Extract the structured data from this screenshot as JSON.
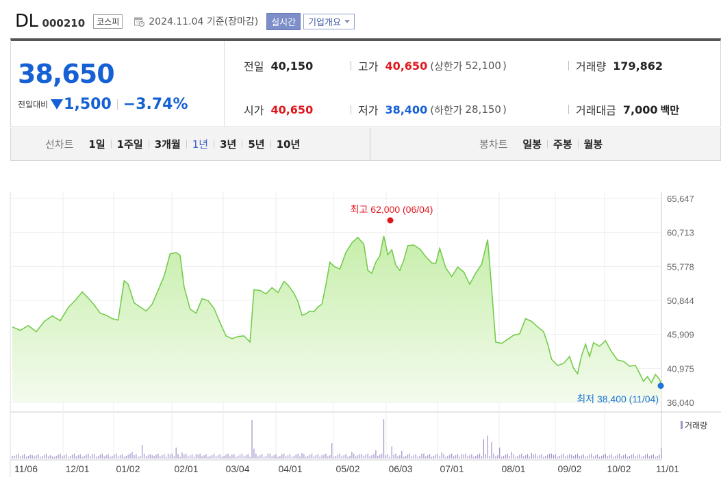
{
  "header": {
    "name": "DL",
    "code": "000210",
    "market": "코스피",
    "date_text": "2024.11.04 기준(장마감)",
    "realtime_label": "실시간",
    "corp_info_label": "기업개요"
  },
  "quote": {
    "price": "38,650",
    "change_label": "전일대비",
    "change": "1,500",
    "change_pct": "−3.74%",
    "prev_close_label": "전일",
    "prev_close": "40,150",
    "high_label": "고가",
    "high": "40,650",
    "upper_limit_label": "(상한가",
    "upper_limit": "52,100",
    "upper_limit_close": ")",
    "volume_label": "거래량",
    "volume": "179,862",
    "open_label": "시가",
    "open": "40,650",
    "low_label": "저가",
    "low": "38,400",
    "lower_limit_label": "(하한가",
    "lower_limit": "28,150",
    "lower_limit_close": ")",
    "amount_label": "거래대금",
    "amount": "7,000",
    "amount_unit": "백만",
    "colors": {
      "up": "#e0161d",
      "down": "#1560d4"
    }
  },
  "tabs": {
    "line_label": "선차트",
    "line_items": [
      "1일",
      "1주일",
      "3개월",
      "1년",
      "3년",
      "5년",
      "10년"
    ],
    "active": "1년",
    "candle_label": "봉차트",
    "candle_items": [
      "일봉",
      "주봉",
      "월봉"
    ]
  },
  "chart_data": {
    "type": "area",
    "ylim": [
      36040,
      65647
    ],
    "yticks": [
      "65,647",
      "60,713",
      "55,778",
      "50,844",
      "45,909",
      "40,975",
      "36,040"
    ],
    "xticks": [
      "11/06",
      "12/01",
      "01/02",
      "02/01",
      "03/04",
      "04/01",
      "05/02",
      "06/03",
      "07/01",
      "08/01",
      "09/02",
      "10/02",
      "11/01"
    ],
    "max_label": "최고 62,000 (06/04)",
    "min_label": "최저 38,400 (11/04)",
    "volume_label": "거래량",
    "colors": {
      "line": "#74cc4c",
      "fill_top": "#c6eeaa",
      "fill_bottom": "#f4fbee",
      "volume": "#a08fc9",
      "max": "#e0161d",
      "min": "#1d73d6"
    },
    "price_series": [
      [
        0,
        47000
      ],
      [
        4,
        46500
      ],
      [
        8,
        47200
      ],
      [
        12,
        46300
      ],
      [
        16,
        47800
      ],
      [
        20,
        48600
      ],
      [
        24,
        47900
      ],
      [
        28,
        49800
      ],
      [
        32,
        51000
      ],
      [
        35,
        52100
      ],
      [
        38,
        51200
      ],
      [
        41,
        50200
      ],
      [
        44,
        49000
      ],
      [
        47,
        48700
      ],
      [
        50,
        48200
      ],
      [
        53,
        48000
      ],
      [
        56,
        53700
      ],
      [
        58,
        53200
      ],
      [
        61,
        50500
      ],
      [
        64,
        49900
      ],
      [
        67,
        49300
      ],
      [
        70,
        50300
      ],
      [
        73,
        52300
      ],
      [
        76,
        54400
      ],
      [
        79,
        57600
      ],
      [
        82,
        57800
      ],
      [
        84,
        57400
      ],
      [
        86,
        52800
      ],
      [
        89,
        49600
      ],
      [
        92,
        49000
      ],
      [
        95,
        51100
      ],
      [
        98,
        50800
      ],
      [
        101,
        49700
      ],
      [
        104,
        47600
      ],
      [
        107,
        45700
      ],
      [
        110,
        45300
      ],
      [
        113,
        45600
      ],
      [
        116,
        45700
      ],
      [
        119,
        44800
      ],
      [
        121,
        52400
      ],
      [
        124,
        52300
      ],
      [
        127,
        51800
      ],
      [
        130,
        52700
      ],
      [
        133,
        52000
      ],
      [
        136,
        53600
      ],
      [
        138,
        53100
      ],
      [
        141,
        51900
      ],
      [
        143,
        50700
      ],
      [
        145,
        48700
      ],
      [
        147,
        48900
      ],
      [
        149,
        49300
      ],
      [
        151,
        49200
      ],
      [
        153,
        49900
      ],
      [
        155,
        50300
      ],
      [
        157,
        53100
      ],
      [
        159,
        56400
      ],
      [
        161,
        55800
      ],
      [
        164,
        55400
      ],
      [
        167,
        57800
      ],
      [
        170,
        59200
      ],
      [
        173,
        60000
      ],
      [
        176,
        59000
      ],
      [
        178,
        55200
      ],
      [
        180,
        54800
      ],
      [
        182,
        56400
      ],
      [
        184,
        57300
      ],
      [
        186,
        60200
      ],
      [
        188,
        57500
      ],
      [
        190,
        58200
      ],
      [
        192,
        56000
      ],
      [
        194,
        55200
      ],
      [
        196,
        56700
      ],
      [
        198,
        58800
      ],
      [
        201,
        58900
      ],
      [
        204,
        58300
      ],
      [
        207,
        57200
      ],
      [
        210,
        56300
      ],
      [
        212,
        56200
      ],
      [
        214,
        58400
      ],
      [
        217,
        55600
      ],
      [
        220,
        54300
      ],
      [
        223,
        55700
      ],
      [
        226,
        55000
      ],
      [
        229,
        53200
      ],
      [
        232,
        54800
      ],
      [
        235,
        56100
      ],
      [
        238,
        59700
      ],
      [
        240,
        52500
      ],
      [
        242,
        44800
      ],
      [
        245,
        44600
      ],
      [
        248,
        45200
      ],
      [
        251,
        45800
      ],
      [
        254,
        46000
      ],
      [
        257,
        48200
      ],
      [
        260,
        47800
      ],
      [
        263,
        47000
      ],
      [
        266,
        46300
      ],
      [
        268,
        44600
      ],
      [
        270,
        42300
      ],
      [
        273,
        41400
      ],
      [
        276,
        41700
      ],
      [
        279,
        42700
      ],
      [
        281,
        41000
      ],
      [
        283,
        40200
      ],
      [
        285,
        42800
      ],
      [
        287,
        44500
      ],
      [
        289,
        42700
      ],
      [
        291,
        44700
      ],
      [
        294,
        44200
      ],
      [
        297,
        45000
      ],
      [
        300,
        43400
      ],
      [
        303,
        42200
      ],
      [
        306,
        42000
      ],
      [
        309,
        41300
      ],
      [
        312,
        41400
      ],
      [
        314,
        40300
      ],
      [
        316,
        39100
      ],
      [
        318,
        39800
      ],
      [
        320,
        38900
      ],
      [
        322,
        40100
      ],
      [
        324,
        39400
      ],
      [
        325,
        38650
      ]
    ],
    "volume_series": [
      [
        0,
        5
      ],
      [
        10,
        6
      ],
      [
        20,
        4
      ],
      [
        30,
        7
      ],
      [
        40,
        8
      ],
      [
        50,
        5
      ],
      [
        60,
        12
      ],
      [
        65,
        25
      ],
      [
        70,
        6
      ],
      [
        78,
        9
      ],
      [
        82,
        20
      ],
      [
        85,
        11
      ],
      [
        92,
        8
      ],
      [
        100,
        6
      ],
      [
        110,
        7
      ],
      [
        120,
        70
      ],
      [
        121,
        18
      ],
      [
        128,
        9
      ],
      [
        135,
        8
      ],
      [
        145,
        10
      ],
      [
        155,
        6
      ],
      [
        160,
        28
      ],
      [
        170,
        12
      ],
      [
        175,
        8
      ],
      [
        182,
        15
      ],
      [
        186,
        72
      ],
      [
        190,
        22
      ],
      [
        195,
        14
      ],
      [
        205,
        9
      ],
      [
        215,
        11
      ],
      [
        225,
        8
      ],
      [
        236,
        35
      ],
      [
        238,
        42
      ],
      [
        240,
        30
      ],
      [
        244,
        20
      ],
      [
        250,
        12
      ],
      [
        260,
        10
      ],
      [
        270,
        9
      ],
      [
        280,
        7
      ],
      [
        290,
        9
      ],
      [
        300,
        8
      ],
      [
        310,
        7
      ],
      [
        320,
        6
      ],
      [
        325,
        19
      ]
    ]
  }
}
